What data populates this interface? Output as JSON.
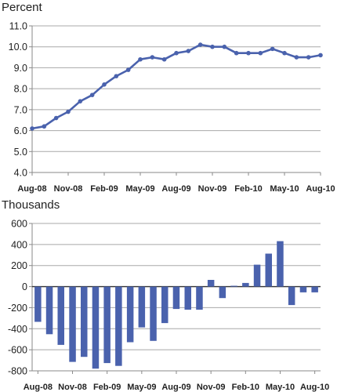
{
  "chart_data": [
    {
      "type": "line",
      "ylabel": "Percent",
      "ylim": [
        4.0,
        11.0
      ],
      "yticks": [
        "4.0",
        "5.0",
        "6.0",
        "7.0",
        "8.0",
        "9.0",
        "10.0",
        "11.0"
      ],
      "ytick_values": [
        4,
        5,
        6,
        7,
        8,
        9,
        10,
        11
      ],
      "grid": "horizontal",
      "x_labels": [
        "Aug-08",
        "Nov-08",
        "Feb-09",
        "May-09",
        "Aug-09",
        "Nov-09",
        "Feb-10",
        "May-10",
        "Aug-10"
      ],
      "series_color": "#4a62ad",
      "values": [
        6.1,
        6.2,
        6.6,
        6.9,
        7.4,
        7.7,
        8.2,
        8.6,
        8.9,
        9.4,
        9.5,
        9.4,
        9.7,
        9.8,
        10.1,
        10.0,
        10.0,
        9.7,
        9.7,
        9.7,
        9.9,
        9.7,
        9.5,
        9.5,
        9.6
      ]
    },
    {
      "type": "bar",
      "ylabel": "Thousands",
      "ylim": [
        -800,
        600
      ],
      "yticks": [
        "600",
        "400",
        "200",
        "0",
        "-200",
        "-400",
        "-600",
        "-800"
      ],
      "ytick_values": [
        600,
        400,
        200,
        0,
        -200,
        -400,
        -600,
        -800
      ],
      "grid": "horizontal",
      "x_labels": [
        "Aug-08",
        "Nov-08",
        "Feb-09",
        "May-09",
        "Aug-09",
        "Nov-09",
        "Feb-10",
        "May-10",
        "Aug-10"
      ],
      "series_color": "#4a62ad",
      "values": [
        -334,
        -452,
        -553,
        -715,
        -667,
        -779,
        -726,
        -753,
        -528,
        -387,
        -515,
        -346,
        -212,
        -219,
        -219,
        64,
        -109,
        8,
        35,
        208,
        313,
        432,
        -175,
        -54,
        -54
      ]
    }
  ]
}
